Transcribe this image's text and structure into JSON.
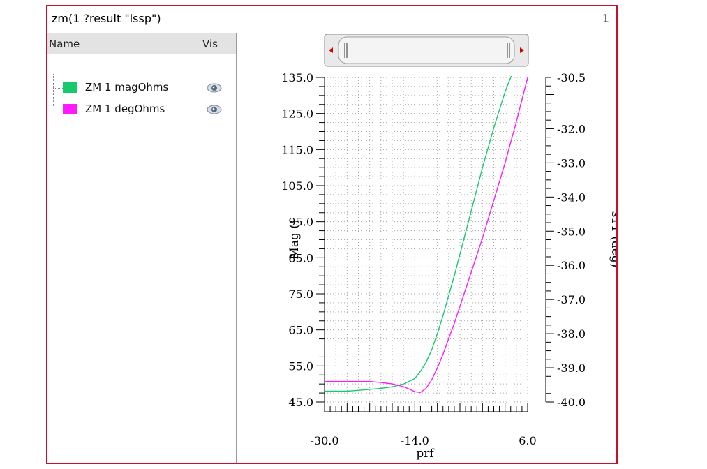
{
  "window": {
    "title": "zm(1 ?result \"lssp\")",
    "number": "1",
    "border_color": "#c8102e"
  },
  "legend": {
    "header_name": "Name",
    "header_vis": "Vis",
    "visibility_icon": "eye-icon",
    "items": [
      {
        "label": "ZM 1 magOhms",
        "color": "#16c96a"
      },
      {
        "label": "ZM 1 degOhms",
        "color": "#ff19ff"
      }
    ]
  },
  "scroll_control": {
    "left_arrow_icon": "arrow-left-icon",
    "right_arrow_icon": "arrow-right-icon"
  },
  "chart_data": {
    "type": "line",
    "xlabel": "prf",
    "ylabel": "Mag ()",
    "y2label": "s11 (deg)",
    "xlim": [
      -30.0,
      6.0
    ],
    "ylim": [
      45.0,
      135.0
    ],
    "y2lim": [
      -40.0,
      -30.5
    ],
    "x_ticks": [
      "-30.0",
      "-14.0",
      "6.0"
    ],
    "y_ticks": [
      "135.0",
      "125.0",
      "115.0",
      "105.0",
      "95.0",
      "85.0",
      "75.0",
      "65.0",
      "55.0",
      "45.0"
    ],
    "y2_ticks": [
      "-30.5",
      "-32.0",
      "-33.0",
      "-34.0",
      "-35.0",
      "-36.0",
      "-37.0",
      "-38.0",
      "-39.0",
      "-40.0"
    ],
    "grid": true,
    "series": [
      {
        "name": "ZM 1 magOhms",
        "axis": "left",
        "color": "#16c96a",
        "x": [
          -30,
          -26,
          -22,
          -20,
          -18,
          -16,
          -14,
          -13,
          -12,
          -11,
          -10,
          -9,
          -8,
          -7,
          -6,
          -5,
          -4,
          -2,
          0,
          2,
          4,
          6
        ],
        "y": [
          48.0,
          48.0,
          48.5,
          48.8,
          49.2,
          50.0,
          51.5,
          53.5,
          56.0,
          59.5,
          64.0,
          69.0,
          74.5,
          80.0,
          86.0,
          92.0,
          98.0,
          110.0,
          121.0,
          131.0,
          139.0,
          144.0
        ]
      },
      {
        "name": "ZM 1 degOhms",
        "axis": "right",
        "color": "#ff19ff",
        "x": [
          -30,
          -26,
          -22,
          -20,
          -18,
          -16,
          -15,
          -14,
          -13,
          -12,
          -11,
          -10,
          -9,
          -8,
          -7,
          -6,
          -5,
          -4,
          -2,
          0,
          2,
          4,
          6
        ],
        "y": [
          -39.4,
          -39.4,
          -39.4,
          -39.43,
          -39.47,
          -39.55,
          -39.62,
          -39.7,
          -39.72,
          -39.6,
          -39.35,
          -39.0,
          -38.6,
          -38.15,
          -37.7,
          -37.2,
          -36.7,
          -36.2,
          -35.2,
          -34.1,
          -33.0,
          -31.8,
          -30.5
        ]
      }
    ]
  }
}
